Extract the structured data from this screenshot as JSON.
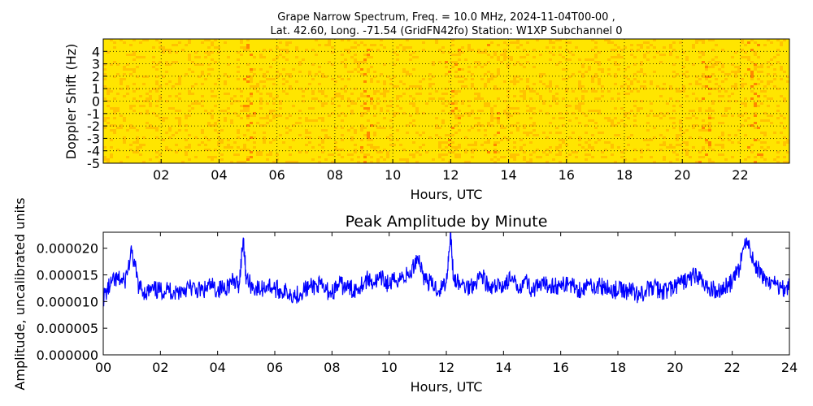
{
  "figure": {
    "title_line1": "Grape Narrow Spectrum, Freq. = 10.0 MHz, 2024-11-04T00-00 ,",
    "title_line2": "Lat.  42.60, Long. -71.54 (GridFN42fo) Station: W1XP Subchannel 0"
  },
  "colors": {
    "spectrogram_base": "#ffe500",
    "spectrogram_warm": "#ff9a00",
    "spectrogram_hot": "#ff3a00",
    "line": "#0000ff"
  },
  "chart_data": [
    {
      "type": "heatmap",
      "title": "",
      "xlabel": "Hours, UTC",
      "ylabel": "Doppler Shift (Hz)",
      "xlim": [
        0,
        23.7
      ],
      "ylim": [
        -5,
        5
      ],
      "xticks": [
        "02",
        "04",
        "06",
        "08",
        "10",
        "12",
        "14",
        "16",
        "18",
        "20",
        "22"
      ],
      "xtick_values": [
        2,
        4,
        6,
        8,
        10,
        12,
        14,
        16,
        18,
        20,
        22
      ],
      "yticks": [
        "4",
        "3",
        "2",
        "1",
        "0",
        "-1",
        "-2",
        "-3",
        "-4",
        "-5"
      ],
      "ytick_values": [
        4,
        3,
        2,
        1,
        0,
        -1,
        -2,
        -3,
        -4,
        -5
      ],
      "colormap": "yellow-to-red, mostly yellow with reddish vertical streaks near 12, 13.5, 20.8 and 22.4 UTC",
      "grid": true
    },
    {
      "type": "line",
      "title": "Peak Amplitude by Minute",
      "xlabel": "Hours, UTC",
      "ylabel": "Amplitude, uncalibrated units",
      "xlim": [
        0,
        24
      ],
      "ylim": [
        0,
        2.3e-05
      ],
      "xticks": [
        "00",
        "02",
        "04",
        "06",
        "08",
        "10",
        "12",
        "14",
        "16",
        "18",
        "20",
        "22",
        "24"
      ],
      "xtick_values": [
        0,
        2,
        4,
        6,
        8,
        10,
        12,
        14,
        16,
        18,
        20,
        22,
        24
      ],
      "yticks": [
        "0.000000",
        "0.000005",
        "0.000010",
        "0.000015",
        "0.000020"
      ],
      "ytick_values": [
        0,
        5e-06,
        1e-05,
        1.5e-05,
        2e-05
      ],
      "grid": false,
      "series": [
        {
          "x": [
            0.0,
            0.25,
            0.5,
            0.75,
            1.0,
            1.25,
            1.5,
            1.75,
            2.0,
            2.25,
            2.5,
            2.75,
            3.0,
            3.25,
            3.5,
            3.75,
            4.0,
            4.25,
            4.5,
            4.75,
            4.9,
            5.0,
            5.25,
            5.5,
            5.75,
            6.0,
            6.25,
            6.5,
            6.75,
            7.0,
            7.25,
            7.5,
            7.75,
            8.0,
            8.25,
            8.5,
            8.75,
            9.0,
            9.25,
            9.5,
            9.75,
            10.0,
            10.25,
            10.5,
            10.75,
            11.0,
            11.25,
            11.5,
            11.75,
            12.0,
            12.15,
            12.25,
            12.5,
            12.75,
            13.0,
            13.25,
            13.5,
            13.75,
            14.0,
            14.25,
            14.5,
            14.75,
            15.0,
            15.25,
            15.5,
            15.75,
            16.0,
            16.25,
            16.5,
            16.75,
            17.0,
            17.25,
            17.5,
            17.75,
            18.0,
            18.25,
            18.5,
            18.75,
            19.0,
            19.25,
            19.5,
            19.75,
            20.0,
            20.25,
            20.5,
            20.75,
            21.0,
            21.25,
            21.5,
            21.75,
            22.0,
            22.25,
            22.5,
            22.75,
            23.0,
            23.25,
            23.5,
            23.75,
            24.0
          ],
          "values": [
            1.05e-05,
            1.3e-05,
            1.4e-05,
            1.35e-05,
            1.9e-05,
            1.25e-05,
            1.15e-05,
            1.2e-05,
            1.18e-05,
            1.22e-05,
            1.15e-05,
            1.2e-05,
            1.25e-05,
            1.2e-05,
            1.18e-05,
            1.28e-05,
            1.2e-05,
            1.25e-05,
            1.35e-05,
            1.3e-05,
            2.2e-05,
            1.4e-05,
            1.25e-05,
            1.2e-05,
            1.3e-05,
            1.22e-05,
            1.18e-05,
            1.15e-05,
            1.1e-05,
            1.2e-05,
            1.25e-05,
            1.3e-05,
            1.2e-05,
            1.15e-05,
            1.3e-05,
            1.25e-05,
            1.2e-05,
            1.3e-05,
            1.4e-05,
            1.35e-05,
            1.4e-05,
            1.3e-05,
            1.4e-05,
            1.45e-05,
            1.5e-05,
            1.85e-05,
            1.4e-05,
            1.3e-05,
            1.2e-05,
            1.35e-05,
            2.3e-05,
            1.4e-05,
            1.3e-05,
            1.25e-05,
            1.35e-05,
            1.5e-05,
            1.2e-05,
            1.25e-05,
            1.3e-05,
            1.4e-05,
            1.25e-05,
            1.4e-05,
            1.2e-05,
            1.25e-05,
            1.3e-05,
            1.3e-05,
            1.25e-05,
            1.35e-05,
            1.25e-05,
            1.2e-05,
            1.3e-05,
            1.28e-05,
            1.25e-05,
            1.2e-05,
            1.2e-05,
            1.18e-05,
            1.2e-05,
            1.1e-05,
            1.2e-05,
            1.25e-05,
            1.18e-05,
            1.2e-05,
            1.25e-05,
            1.35e-05,
            1.4e-05,
            1.5e-05,
            1.3e-05,
            1.2e-05,
            1.2e-05,
            1.25e-05,
            1.35e-05,
            1.6e-05,
            2.2e-05,
            1.7e-05,
            1.5e-05,
            1.35e-05,
            1.3e-05,
            1.25e-05,
            1.25e-05
          ]
        }
      ]
    }
  ]
}
